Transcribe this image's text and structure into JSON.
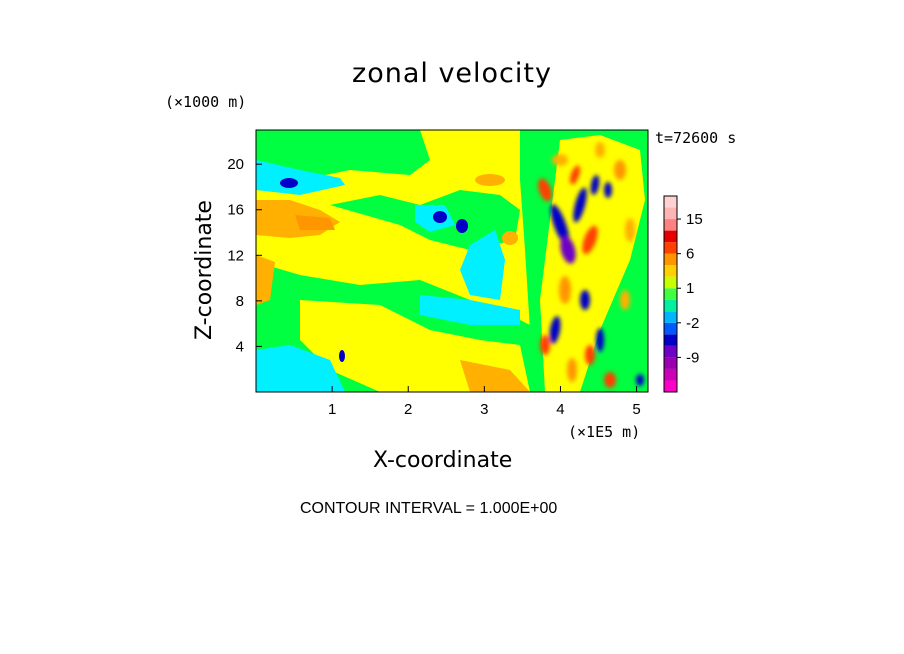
{
  "chart_data": {
    "type": "heatmap",
    "title": "zonal velocity",
    "xlabel": "X-coordinate",
    "ylabel": "Z-coordinate",
    "x_unit": "(×1E5 m)",
    "y_unit": "(×1000 m)",
    "time_label": "t=72600 s",
    "footer": "CONTOUR INTERVAL = 1.000E+00",
    "xlim": [
      0,
      5.15
    ],
    "ylim": [
      0,
      23
    ],
    "x_ticks": [
      "1",
      "2",
      "3",
      "4",
      "5"
    ],
    "x_tick_values": [
      1,
      2,
      3,
      4,
      5
    ],
    "y_ticks": [
      "4",
      "8",
      "12",
      "16",
      "20"
    ],
    "y_tick_values": [
      4,
      8,
      12,
      16,
      20
    ],
    "colorbar": {
      "levels": [
        -15,
        -12,
        -9,
        -6,
        -3,
        -2,
        -1,
        0,
        1,
        2,
        3,
        6,
        9,
        12,
        15,
        18
      ],
      "colors": [
        "#ff00c8",
        "#cc00b4",
        "#9a00b0",
        "#6e00c8",
        "#0000c8",
        "#005aff",
        "#00b4ff",
        "#00f0a0",
        "#40ff40",
        "#c8ff00",
        "#ffd000",
        "#ff9600",
        "#ff4000",
        "#e60000",
        "#ff8080",
        "#ffb4b4",
        "#ffd2d2"
      ],
      "tick_labels": [
        "15",
        "6",
        "1",
        "-2",
        "-9"
      ],
      "tick_values": [
        15,
        6,
        1,
        -2,
        -9
      ]
    }
  }
}
